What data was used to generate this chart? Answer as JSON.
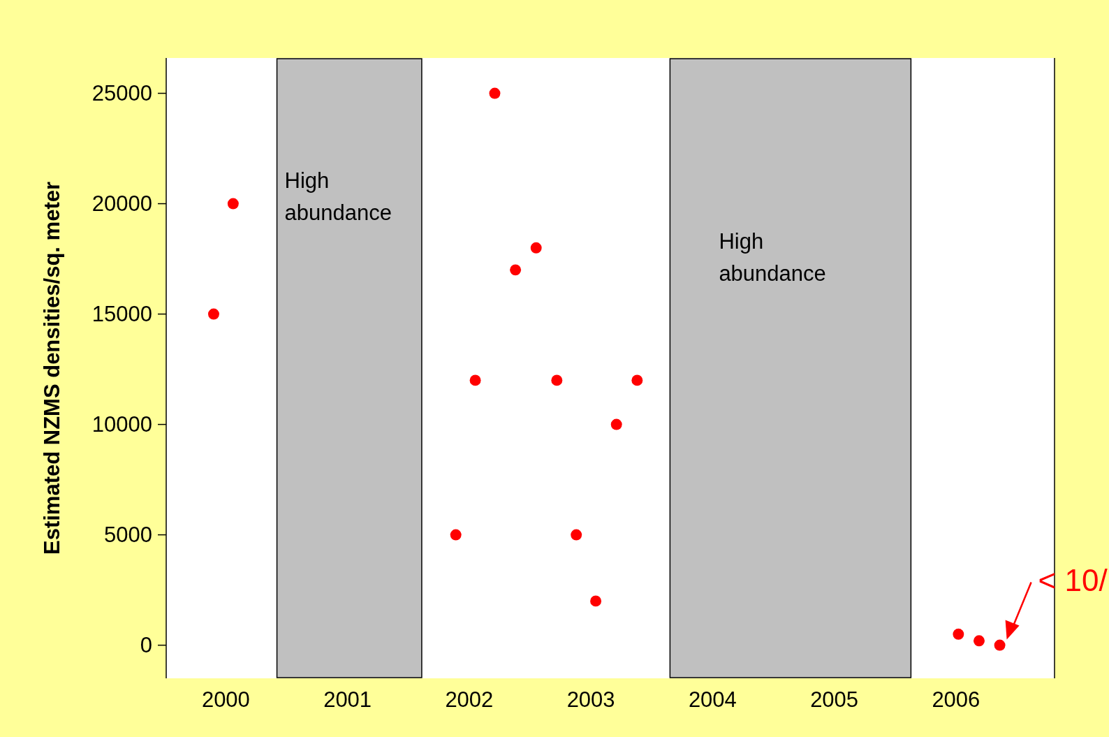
{
  "chart_data": {
    "type": "scatter",
    "ylabel": "Estimated NZMS densities/sq. meter",
    "x": [
      1999.9,
      2000.06,
      2001.89,
      2002.05,
      2002.21,
      2002.38,
      2002.55,
      2002.72,
      2002.88,
      2003.04,
      2003.21,
      2003.38,
      2006.02,
      2006.19,
      2006.36
    ],
    "series": [
      {
        "color": "#ff0000",
        "values": [
          15000,
          20000,
          5000,
          12000,
          25000,
          17000,
          18000,
          12000,
          5000,
          2000,
          10000,
          12000,
          500,
          200,
          0
        ]
      }
    ],
    "marker": "circle",
    "xlim": [
      1999.51,
      2006.81
    ],
    "xticks": [
      2000,
      2001,
      2002,
      2003,
      2004,
      2005,
      2006
    ],
    "ylim": [
      -1500,
      26600
    ],
    "yticks": [
      0,
      5000,
      10000,
      15000,
      20000,
      25000
    ],
    "grid": false,
    "bands": [
      {
        "axis": "x",
        "from": 2000.42,
        "to": 2001.61,
        "label": "High abundance",
        "color": "#c0c0c0"
      },
      {
        "axis": "x",
        "from": 2003.65,
        "to": 2005.63,
        "label": "High abundance",
        "color": "#c0c0c0"
      }
    ],
    "annotations": [
      {
        "text": "< 10/",
        "x": 2006.36,
        "y": 0
      }
    ]
  }
}
